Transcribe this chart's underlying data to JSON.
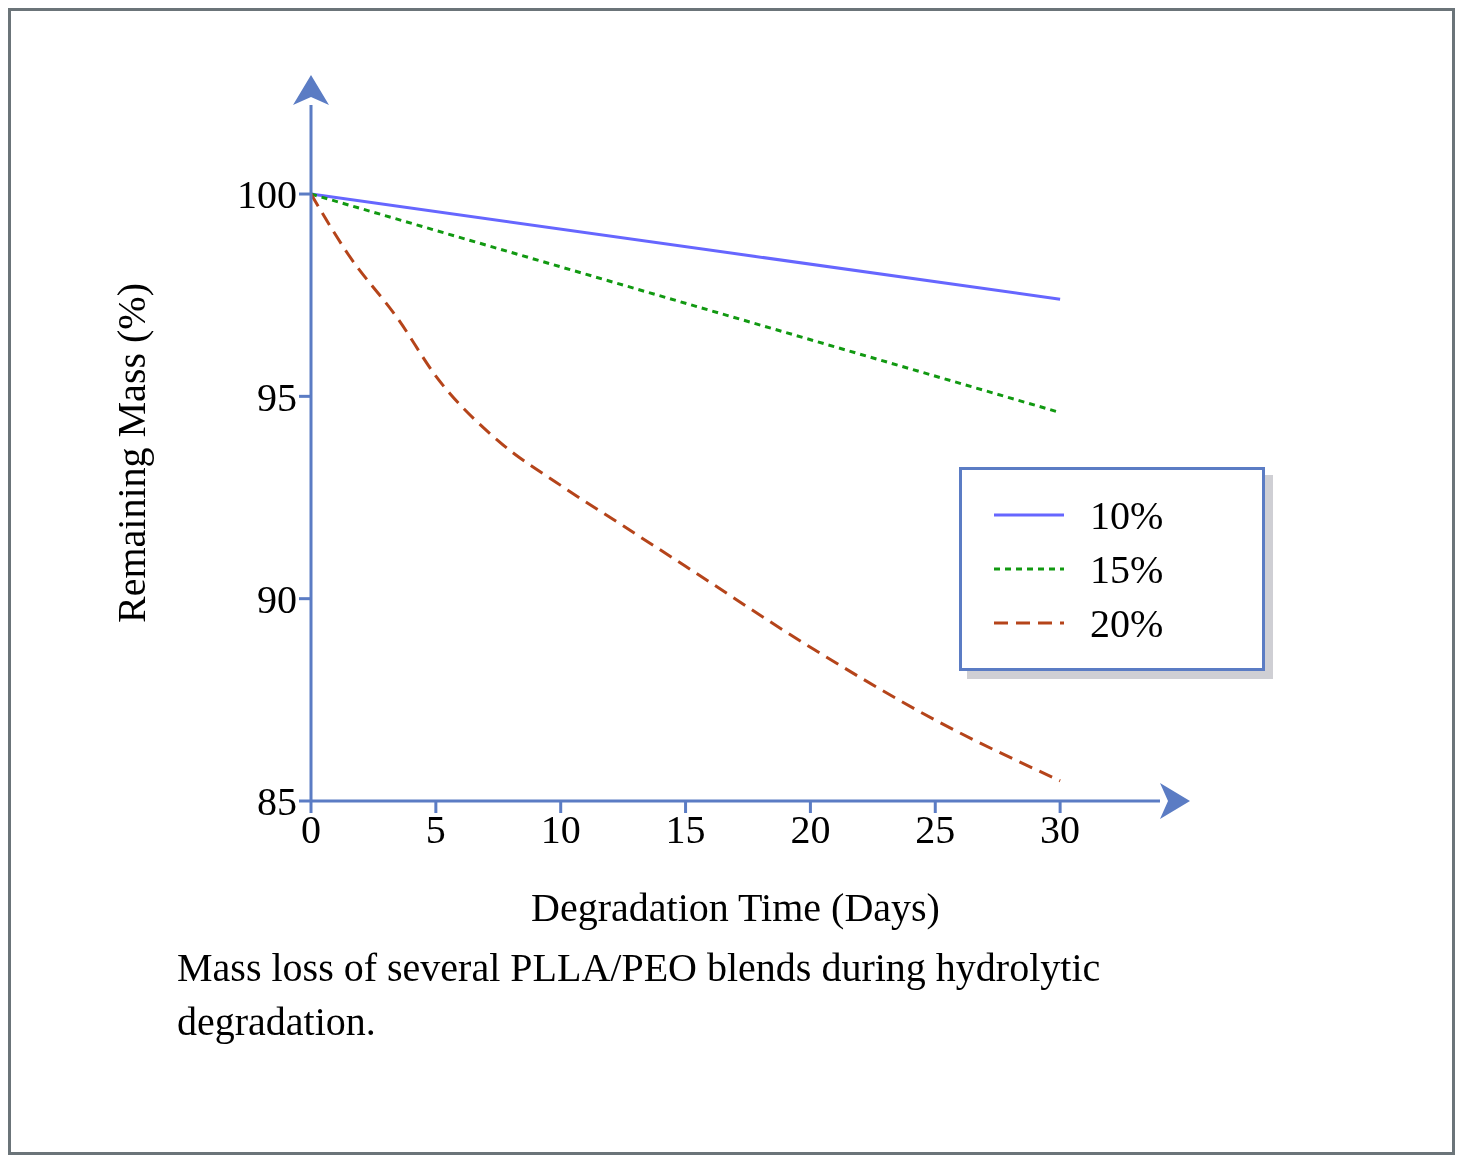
{
  "chart_data": {
    "type": "line",
    "xlabel": "Degradation Time (Days)",
    "ylabel": "Remaining Mass (%)",
    "xlim": [
      0,
      34
    ],
    "xticks": [
      0,
      5,
      10,
      15,
      20,
      25,
      30
    ],
    "ylim": [
      85,
      102.2
    ],
    "yticks": [
      85,
      90,
      95,
      100
    ],
    "grid": false,
    "legend": "right",
    "marker": "none",
    "series": [
      {
        "name": "10%",
        "color": "#6666ff",
        "line_style": "solid",
        "x": [
          0,
          30
        ],
        "values": [
          100,
          97.4
        ]
      },
      {
        "name": "15%",
        "color": "#119911",
        "line_style": "dashed",
        "x": [
          0,
          30
        ],
        "values": [
          100,
          94.6
        ]
      },
      {
        "name": "20%",
        "color": "#b5441a",
        "line_style": "dashed",
        "x": [
          0,
          1.5,
          3.5,
          5,
          7.5,
          10,
          12.5,
          15,
          20,
          25,
          30
        ],
        "values": [
          100,
          98.5,
          96.9,
          95.5,
          93.9,
          92.8,
          91.8,
          90.8,
          88.8,
          87,
          85.5
        ]
      }
    ],
    "annotations": [
      "Mass loss of several PLLA/PEO blends during hydrolytic degradation."
    ]
  }
}
